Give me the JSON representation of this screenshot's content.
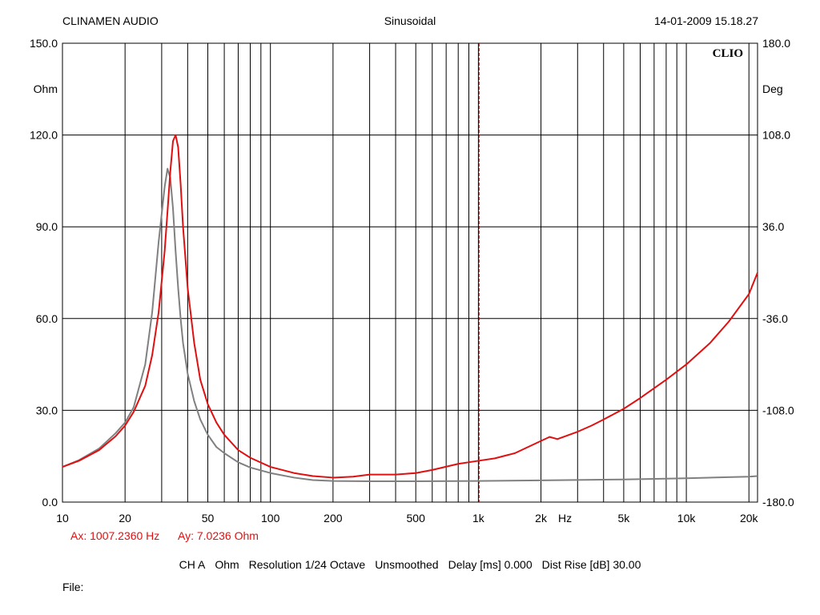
{
  "header": {
    "left": "CLINAMEN AUDIO",
    "center": "Sinusoidal",
    "right": "14-01-2009 15.18.27"
  },
  "brand": "CLIO",
  "cursor": {
    "x_readout": "Ax: 1007.2360 Hz",
    "y_readout": "Ay: 7.0236 Ohm",
    "x_value": 1007.236
  },
  "settings": {
    "channel": "CH A",
    "unit": "Ohm",
    "resolution": "Resolution 1/24 Octave",
    "smoothing": "Unsmoothed",
    "delay": "Delay [ms] 0.000",
    "dist_rise": "Dist Rise [dB] 30.00"
  },
  "file_label": "File:",
  "colors": {
    "impedance": "#e01010",
    "phase": "#808080",
    "cursor": "#8b0000",
    "grid": "#000000"
  },
  "chart_data": {
    "type": "line",
    "x_scale": "log",
    "xlim": [
      10,
      22000
    ],
    "ylim_left": [
      0,
      150
    ],
    "ylim_right": [
      -180,
      180
    ],
    "ylabel_left": "Ohm",
    "ylabel_right": "Deg",
    "xlabel": "Hz",
    "grid": true,
    "left_ticks": [
      "0.0",
      "30.0",
      "60.0",
      "90.0",
      "120.0",
      "150.0"
    ],
    "left_tick_values": [
      0,
      30,
      60,
      90,
      120,
      150
    ],
    "right_ticks": [
      "-180.0",
      "-108.0",
      "-36.0",
      "36.0",
      "108.0",
      "180.0"
    ],
    "x_ticks": [
      {
        "value": 10,
        "label": "10"
      },
      {
        "value": 20,
        "label": "20"
      },
      {
        "value": 50,
        "label": "50"
      },
      {
        "value": 100,
        "label": "100"
      },
      {
        "value": 200,
        "label": "200"
      },
      {
        "value": 500,
        "label": "500"
      },
      {
        "value": 1000,
        "label": "1k"
      },
      {
        "value": 2000,
        "label": "2k"
      },
      {
        "value": 5000,
        "label": "5k"
      },
      {
        "value": 10000,
        "label": "10k"
      },
      {
        "value": 20000,
        "label": "20k"
      }
    ],
    "series": [
      {
        "color": "#e01010",
        "axis": "left",
        "x": [
          10,
          12,
          15,
          18,
          20,
          22,
          25,
          27,
          29,
          31,
          32,
          33,
          34,
          35,
          36,
          37,
          38,
          40,
          43,
          46,
          50,
          55,
          60,
          70,
          80,
          100,
          130,
          160,
          200,
          250,
          300,
          400,
          500,
          600,
          800,
          1000,
          1200,
          1500,
          2000,
          2200,
          2400,
          3000,
          3500,
          4000,
          5000,
          6000,
          8000,
          10000,
          13000,
          16000,
          20000,
          22000
        ],
        "y": [
          11.5,
          13.5,
          17,
          21.5,
          25,
          29.5,
          38,
          48,
          62,
          82,
          95,
          108,
          118,
          120,
          116,
          104,
          90,
          70,
          52,
          40,
          32,
          26,
          22,
          17,
          14.5,
          11.5,
          9.5,
          8.5,
          8,
          8.3,
          9,
          9,
          9.5,
          10.5,
          12.5,
          13.5,
          14.3,
          16,
          20,
          21.3,
          20.6,
          23,
          25,
          27,
          30.5,
          34,
          40,
          45,
          52,
          59,
          68,
          75
        ]
      },
      {
        "color": "#808080",
        "axis": "left",
        "x": [
          10,
          12,
          15,
          18,
          20,
          22,
          25,
          27,
          29,
          31,
          32,
          33,
          34,
          35,
          36,
          37,
          38,
          40,
          43,
          46,
          50,
          55,
          60,
          70,
          80,
          100,
          130,
          160,
          200,
          300,
          500,
          1000,
          2000,
          5000,
          10000,
          20000,
          22000
        ],
        "y": [
          11.5,
          13.7,
          17.5,
          22.5,
          26,
          31,
          45,
          62,
          85,
          103,
          109,
          106,
          96,
          82,
          70,
          60,
          52,
          42,
          33,
          27,
          22,
          18,
          16,
          13,
          11.3,
          9.5,
          8,
          7.2,
          6.9,
          6.8,
          6.8,
          6.9,
          7.1,
          7.4,
          7.8,
          8.3,
          8.5
        ]
      }
    ]
  }
}
